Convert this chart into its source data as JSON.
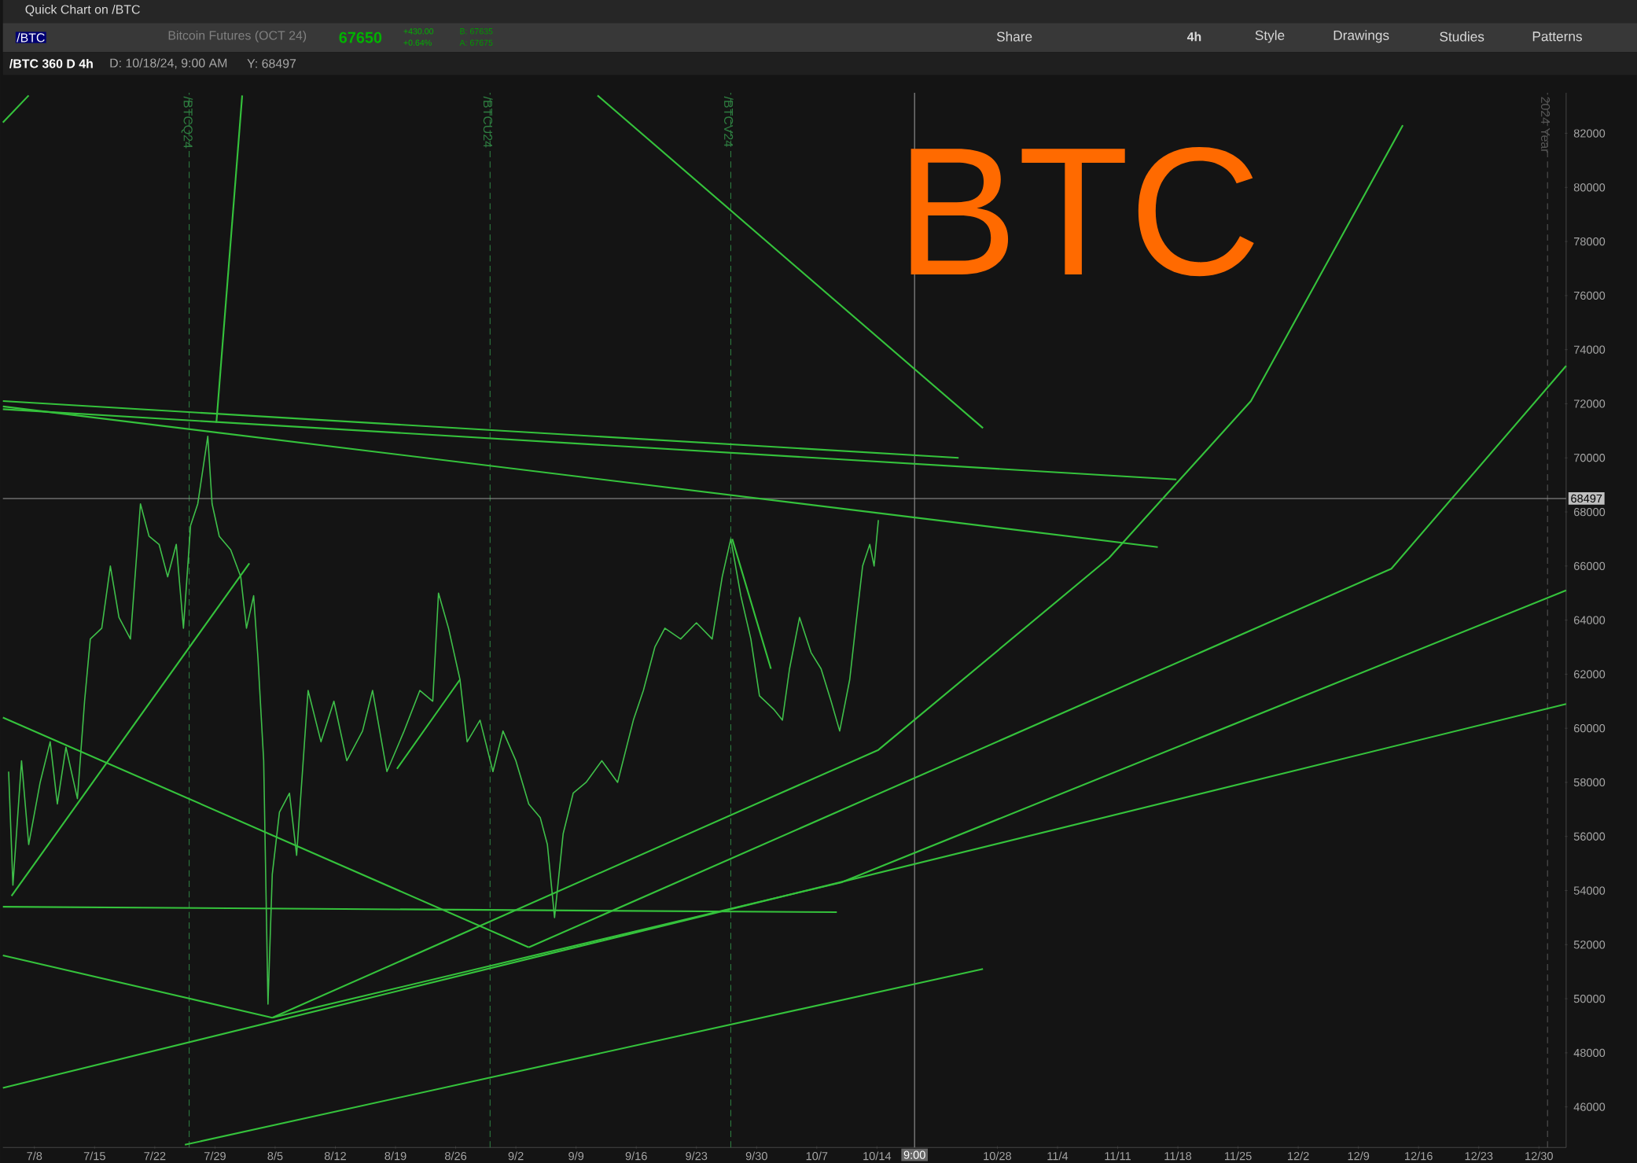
{
  "chart_data": {
    "type": "line",
    "title": "BTC",
    "annotations": [
      "Quick Chart on /BTC",
      "/BTC",
      "Bitcoin Futures (OCT 24)",
      "67650",
      "+430.00",
      "+0.64%",
      "B: 67635",
      "A: 67675",
      "Share",
      "4h",
      "Style",
      "Drawings",
      "Studies",
      "Patterns",
      "/BTC 360 D 4h",
      "D: 10/18/24, 9:00 AM",
      "Y: 68497"
    ],
    "xlim": [
      "2024-07-04T08:00",
      "2025-01-02T04:00"
    ],
    "ylim": [
      44500,
      83500
    ],
    "xticks": [
      {
        "value": "2024-07-08",
        "label": "7/8"
      },
      {
        "value": "2024-07-15",
        "label": "7/15"
      },
      {
        "value": "2024-07-22",
        "label": "7/22"
      },
      {
        "value": "2024-07-29",
        "label": "7/29"
      },
      {
        "value": "2024-08-05",
        "label": "8/5"
      },
      {
        "value": "2024-08-12",
        "label": "8/12"
      },
      {
        "value": "2024-08-19",
        "label": "8/19"
      },
      {
        "value": "2024-08-26",
        "label": "8/26"
      },
      {
        "value": "2024-09-02",
        "label": "9/2"
      },
      {
        "value": "2024-09-09",
        "label": "9/9"
      },
      {
        "value": "2024-09-16",
        "label": "9/16"
      },
      {
        "value": "2024-09-23",
        "label": "9/23"
      },
      {
        "value": "2024-09-30",
        "label": "9/30"
      },
      {
        "value": "2024-10-07",
        "label": "10/7"
      },
      {
        "value": "2024-10-14",
        "label": "10/14"
      },
      {
        "value": "2024-10-28",
        "label": "10/28"
      },
      {
        "value": "2024-11-04",
        "label": "11/4"
      },
      {
        "value": "2024-11-11",
        "label": "11/11"
      },
      {
        "value": "2024-11-18",
        "label": "11/18"
      },
      {
        "value": "2024-11-25",
        "label": "11/25"
      },
      {
        "value": "2024-12-02",
        "label": "12/2"
      },
      {
        "value": "2024-12-09",
        "label": "12/9"
      },
      {
        "value": "2024-12-16",
        "label": "12/16"
      },
      {
        "value": "2024-12-23",
        "label": "12/23"
      },
      {
        "value": "2024-12-30",
        "label": "12/30"
      }
    ],
    "yticks": [
      46000,
      48000,
      50000,
      52000,
      54000,
      56000,
      58000,
      60000,
      62000,
      64000,
      66000,
      68000,
      70000,
      72000,
      74000,
      76000,
      78000,
      80000,
      82000
    ],
    "ref_lines": [
      {
        "axis": "x",
        "value": "2024-07-26",
        "label": "/BTCQ24",
        "color": "#2e7d40",
        "line_style": "dashed"
      },
      {
        "axis": "x",
        "value": "2024-08-30",
        "label": "/BTCU24",
        "color": "#2e7d40",
        "line_style": "dashed"
      },
      {
        "axis": "x",
        "value": "2024-09-27",
        "label": "/BTCV24",
        "color": "#2e7d40",
        "line_style": "dashed"
      },
      {
        "axis": "x",
        "value": "2024-12-31",
        "label": "2024 Year",
        "color": "#555555",
        "line_style": "dashed"
      },
      {
        "axis": "x",
        "value": "2024-10-18T09:00",
        "label": "9:00",
        "color": "#9a9a9a",
        "line_style": "solid"
      },
      {
        "axis": "y",
        "value": 68497,
        "label": "68497",
        "color": "#9a9a9a",
        "line_style": "solid"
      }
    ],
    "series": [
      {
        "color": "#3fbf4a",
        "x": [
          "2024-07-05T00:00",
          "2024-07-05T12:00",
          "2024-07-06T12:00",
          "2024-07-07T08:00",
          "2024-07-08T16:00",
          "2024-07-09T20:00",
          "2024-07-10T16:00",
          "2024-07-11T16:00",
          "2024-07-13T00:00",
          "2024-07-13T20:00",
          "2024-07-14T12:00",
          "2024-07-15T20:00",
          "2024-07-16T20:00",
          "2024-07-17T20:00",
          "2024-07-19T04:00",
          "2024-07-20T08:00",
          "2024-07-21T08:00",
          "2024-07-22T12:00",
          "2024-07-23T12:00",
          "2024-07-24T12:00",
          "2024-07-25T08:00",
          "2024-07-26T04:00",
          "2024-07-27T00:00",
          "2024-07-28T04:00",
          "2024-07-28T16:00",
          "2024-07-29T12:00",
          "2024-07-30T20:00",
          "2024-08-01T00:00",
          "2024-08-01T16:00",
          "2024-08-02T12:00",
          "2024-08-03T00:00",
          "2024-08-03T16:00",
          "2024-08-04T04:00",
          "2024-08-04T16:00",
          "2024-08-05T12:00",
          "2024-08-06T16:00",
          "2024-08-07T12:00",
          "2024-08-08T20:00",
          "2024-08-10T08:00",
          "2024-08-11T20:00",
          "2024-08-13T08:00",
          "2024-08-15T04:00",
          "2024-08-16T08:00",
          "2024-08-18T00:00",
          "2024-08-20T00:00",
          "2024-08-21T20:00",
          "2024-08-23T08:00",
          "2024-08-24T00:00",
          "2024-08-25T04:00",
          "2024-08-26T12:00",
          "2024-08-27T08:00",
          "2024-08-28T20:00",
          "2024-08-30T08:00",
          "2024-08-31T12:00",
          "2024-09-02T00:00",
          "2024-09-03T12:00",
          "2024-09-04T20:00",
          "2024-09-05T16:00",
          "2024-09-06T12:00",
          "2024-09-07T12:00",
          "2024-09-08T16:00",
          "2024-09-10T04:00",
          "2024-09-12T00:00",
          "2024-09-13T20:00",
          "2024-09-15T16:00",
          "2024-09-16T20:00",
          "2024-09-18T04:00",
          "2024-09-19T08:00",
          "2024-09-21T04:00",
          "2024-09-23T00:00",
          "2024-09-24T20:00",
          "2024-09-26T00:00",
          "2024-09-27T00:00",
          "2024-09-28T04:00",
          "2024-09-29T08:00",
          "2024-09-30T08:00",
          "2024-10-02T00:00",
          "2024-10-03T00:00",
          "2024-10-03T20:00",
          "2024-10-05T00:00",
          "2024-10-06T08:00",
          "2024-10-07T12:00",
          "2024-10-08T16:00",
          "2024-10-09T16:00",
          "2024-10-10T20:00",
          "2024-10-11T12:00",
          "2024-10-12T08:00",
          "2024-10-13T04:00",
          "2024-10-13T16:00",
          "2024-10-14T04:00"
        ],
        "values": [
          58400,
          54200,
          58800,
          55700,
          58000,
          59500,
          57200,
          59300,
          57400,
          61000,
          63300,
          63700,
          66000,
          64100,
          63300,
          68300,
          67100,
          66800,
          65600,
          66800,
          63700,
          67500,
          68300,
          70800,
          68300,
          67100,
          66600,
          65600,
          63700,
          64900,
          62600,
          58800,
          49800,
          54600,
          56900,
          57600,
          55300,
          61400,
          59500,
          61000,
          58800,
          59900,
          61400,
          58400,
          59900,
          61400,
          61000,
          65000,
          63700,
          61800,
          59500,
          60300,
          58400,
          59900,
          58800,
          57200,
          56700,
          55700,
          53000,
          56100,
          57600,
          58000,
          58800,
          58000,
          60300,
          61400,
          63000,
          63700,
          63300,
          63900,
          63300,
          65600,
          67000,
          64900,
          63300,
          61200,
          60700,
          60300,
          62200,
          64100,
          62800,
          62200,
          61000,
          59900,
          61800,
          63700,
          66000,
          66800,
          66000,
          67700
        ]
      },
      {
        "color": "#35c23c",
        "x": [
          "2024-07-04T08:00",
          "2024-07-07T08:00"
        ],
        "values": [
          82400,
          83400
        ]
      },
      {
        "color": "#35c23c",
        "x": [
          "2024-07-29T04:00",
          "2024-08-01T04:00"
        ],
        "values": [
          71300,
          83400
        ]
      },
      {
        "color": "#35c23c",
        "x": [
          "2024-09-11T12:00",
          "2024-10-26T08:00"
        ],
        "values": [
          83400,
          71100
        ]
      },
      {
        "color": "#35c23c",
        "x": [
          "2024-07-04T08:00",
          "2024-10-23T12:00"
        ],
        "values": [
          72100,
          70000
        ]
      },
      {
        "color": "#35c23c",
        "x": [
          "2024-07-04T08:00",
          "2024-11-17T20:00"
        ],
        "values": [
          71800,
          69200
        ]
      },
      {
        "color": "#35c23c",
        "x": [
          "2024-07-04T08:00",
          "2024-11-15T16:00"
        ],
        "values": [
          71900,
          66700
        ]
      },
      {
        "color": "#35c23c",
        "x": [
          "2024-07-04T08:00",
          "2024-09-03T12:00"
        ],
        "values": [
          60400,
          51900
        ]
      },
      {
        "color": "#35c23c",
        "x": [
          "2024-09-03T12:00",
          "2024-12-12T20:00",
          "2025-01-02T04:00"
        ],
        "values": [
          51900,
          65900,
          73400
        ]
      },
      {
        "color": "#35c23c",
        "x": [
          "2024-08-04T16:00",
          "2024-10-14T04:00",
          "2024-11-10T00:00",
          "2024-11-26T12:00",
          "2024-12-14T04:00"
        ],
        "values": [
          49300,
          59200,
          66300,
          72100,
          82300
        ]
      },
      {
        "color": "#35c23c",
        "x": [
          "2024-07-04T08:00",
          "2025-01-02T04:00"
        ],
        "values": [
          46700,
          60900
        ]
      },
      {
        "color": "#35c23c",
        "x": [
          "2024-08-04T16:00",
          "2024-10-09T20:00",
          "2025-01-02T04:00"
        ],
        "values": [
          49300,
          54300,
          65100
        ]
      },
      {
        "color": "#35c23c",
        "x": [
          "2024-07-04T08:00",
          "2024-10-09T08:00"
        ],
        "values": [
          53400,
          53200
        ]
      },
      {
        "color": "#35c23c",
        "x": [
          "2024-07-04T08:00",
          "2024-08-04T16:00"
        ],
        "values": [
          51600,
          49300
        ]
      },
      {
        "color": "#35c23c",
        "x": [
          "2024-07-25T12:00",
          "2024-10-26T08:00"
        ],
        "values": [
          44600,
          51100
        ]
      },
      {
        "color": "#35c23c",
        "x": [
          "2024-07-05T08:00",
          "2024-08-02T00:00"
        ],
        "values": [
          53800,
          66100
        ]
      },
      {
        "color": "#35c23c",
        "x": [
          "2024-08-19T04:00",
          "2024-08-26T12:00"
        ],
        "values": [
          58500,
          61800
        ]
      },
      {
        "color": "#35c23c",
        "x": [
          "2024-09-27T04:00",
          "2024-10-01T16:00"
        ],
        "values": [
          67000,
          62200
        ]
      }
    ]
  }
}
